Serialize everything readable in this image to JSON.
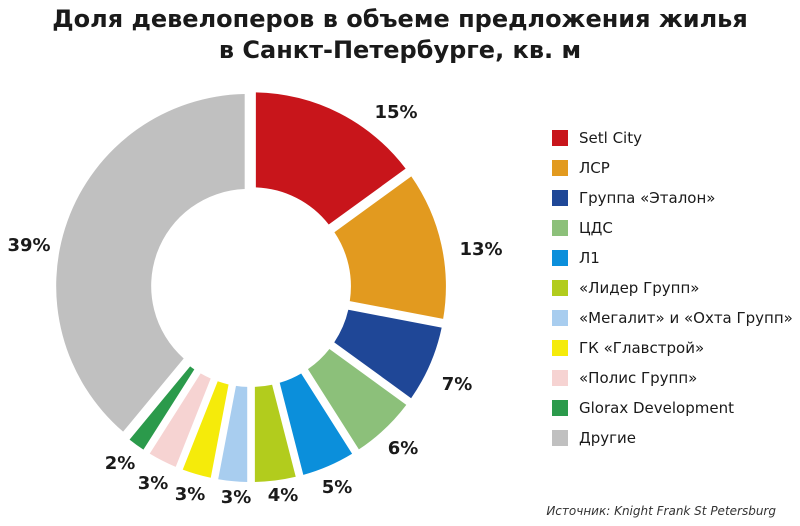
{
  "title_line1": "Доля девелоперов в объеме предложения жилья",
  "title_line2": "в Санкт-Петербурге, кв. м",
  "source": "Источник: Knight Frank St Petersburg",
  "chart_data": {
    "type": "pie",
    "variant": "donut",
    "categories": [
      "Setl City",
      "ЛСР",
      "Группа «Эталон»",
      "ЦДС",
      "Л1",
      "«Лидер Групп»",
      "«Мегалит» и «Охта Групп»",
      "ГК «Главстрой»",
      "«Полис Групп»",
      "Glorax Development",
      "Другие"
    ],
    "values": [
      15,
      13,
      7,
      6,
      5,
      4,
      3,
      3,
      3,
      2,
      39
    ],
    "labels": [
      "15%",
      "13%",
      "7%",
      "6%",
      "5%",
      "4%",
      "3%",
      "3%",
      "3%",
      "2%",
      "39%"
    ],
    "colors": [
      "#c8151b",
      "#e29a1f",
      "#1f4797",
      "#8cc07a",
      "#0b8fdb",
      "#b2cc1d",
      "#a8cdef",
      "#f5eb0a",
      "#f6d3d2",
      "#2b9a4b",
      "#c0c0c0"
    ],
    "legend_position": "right"
  }
}
